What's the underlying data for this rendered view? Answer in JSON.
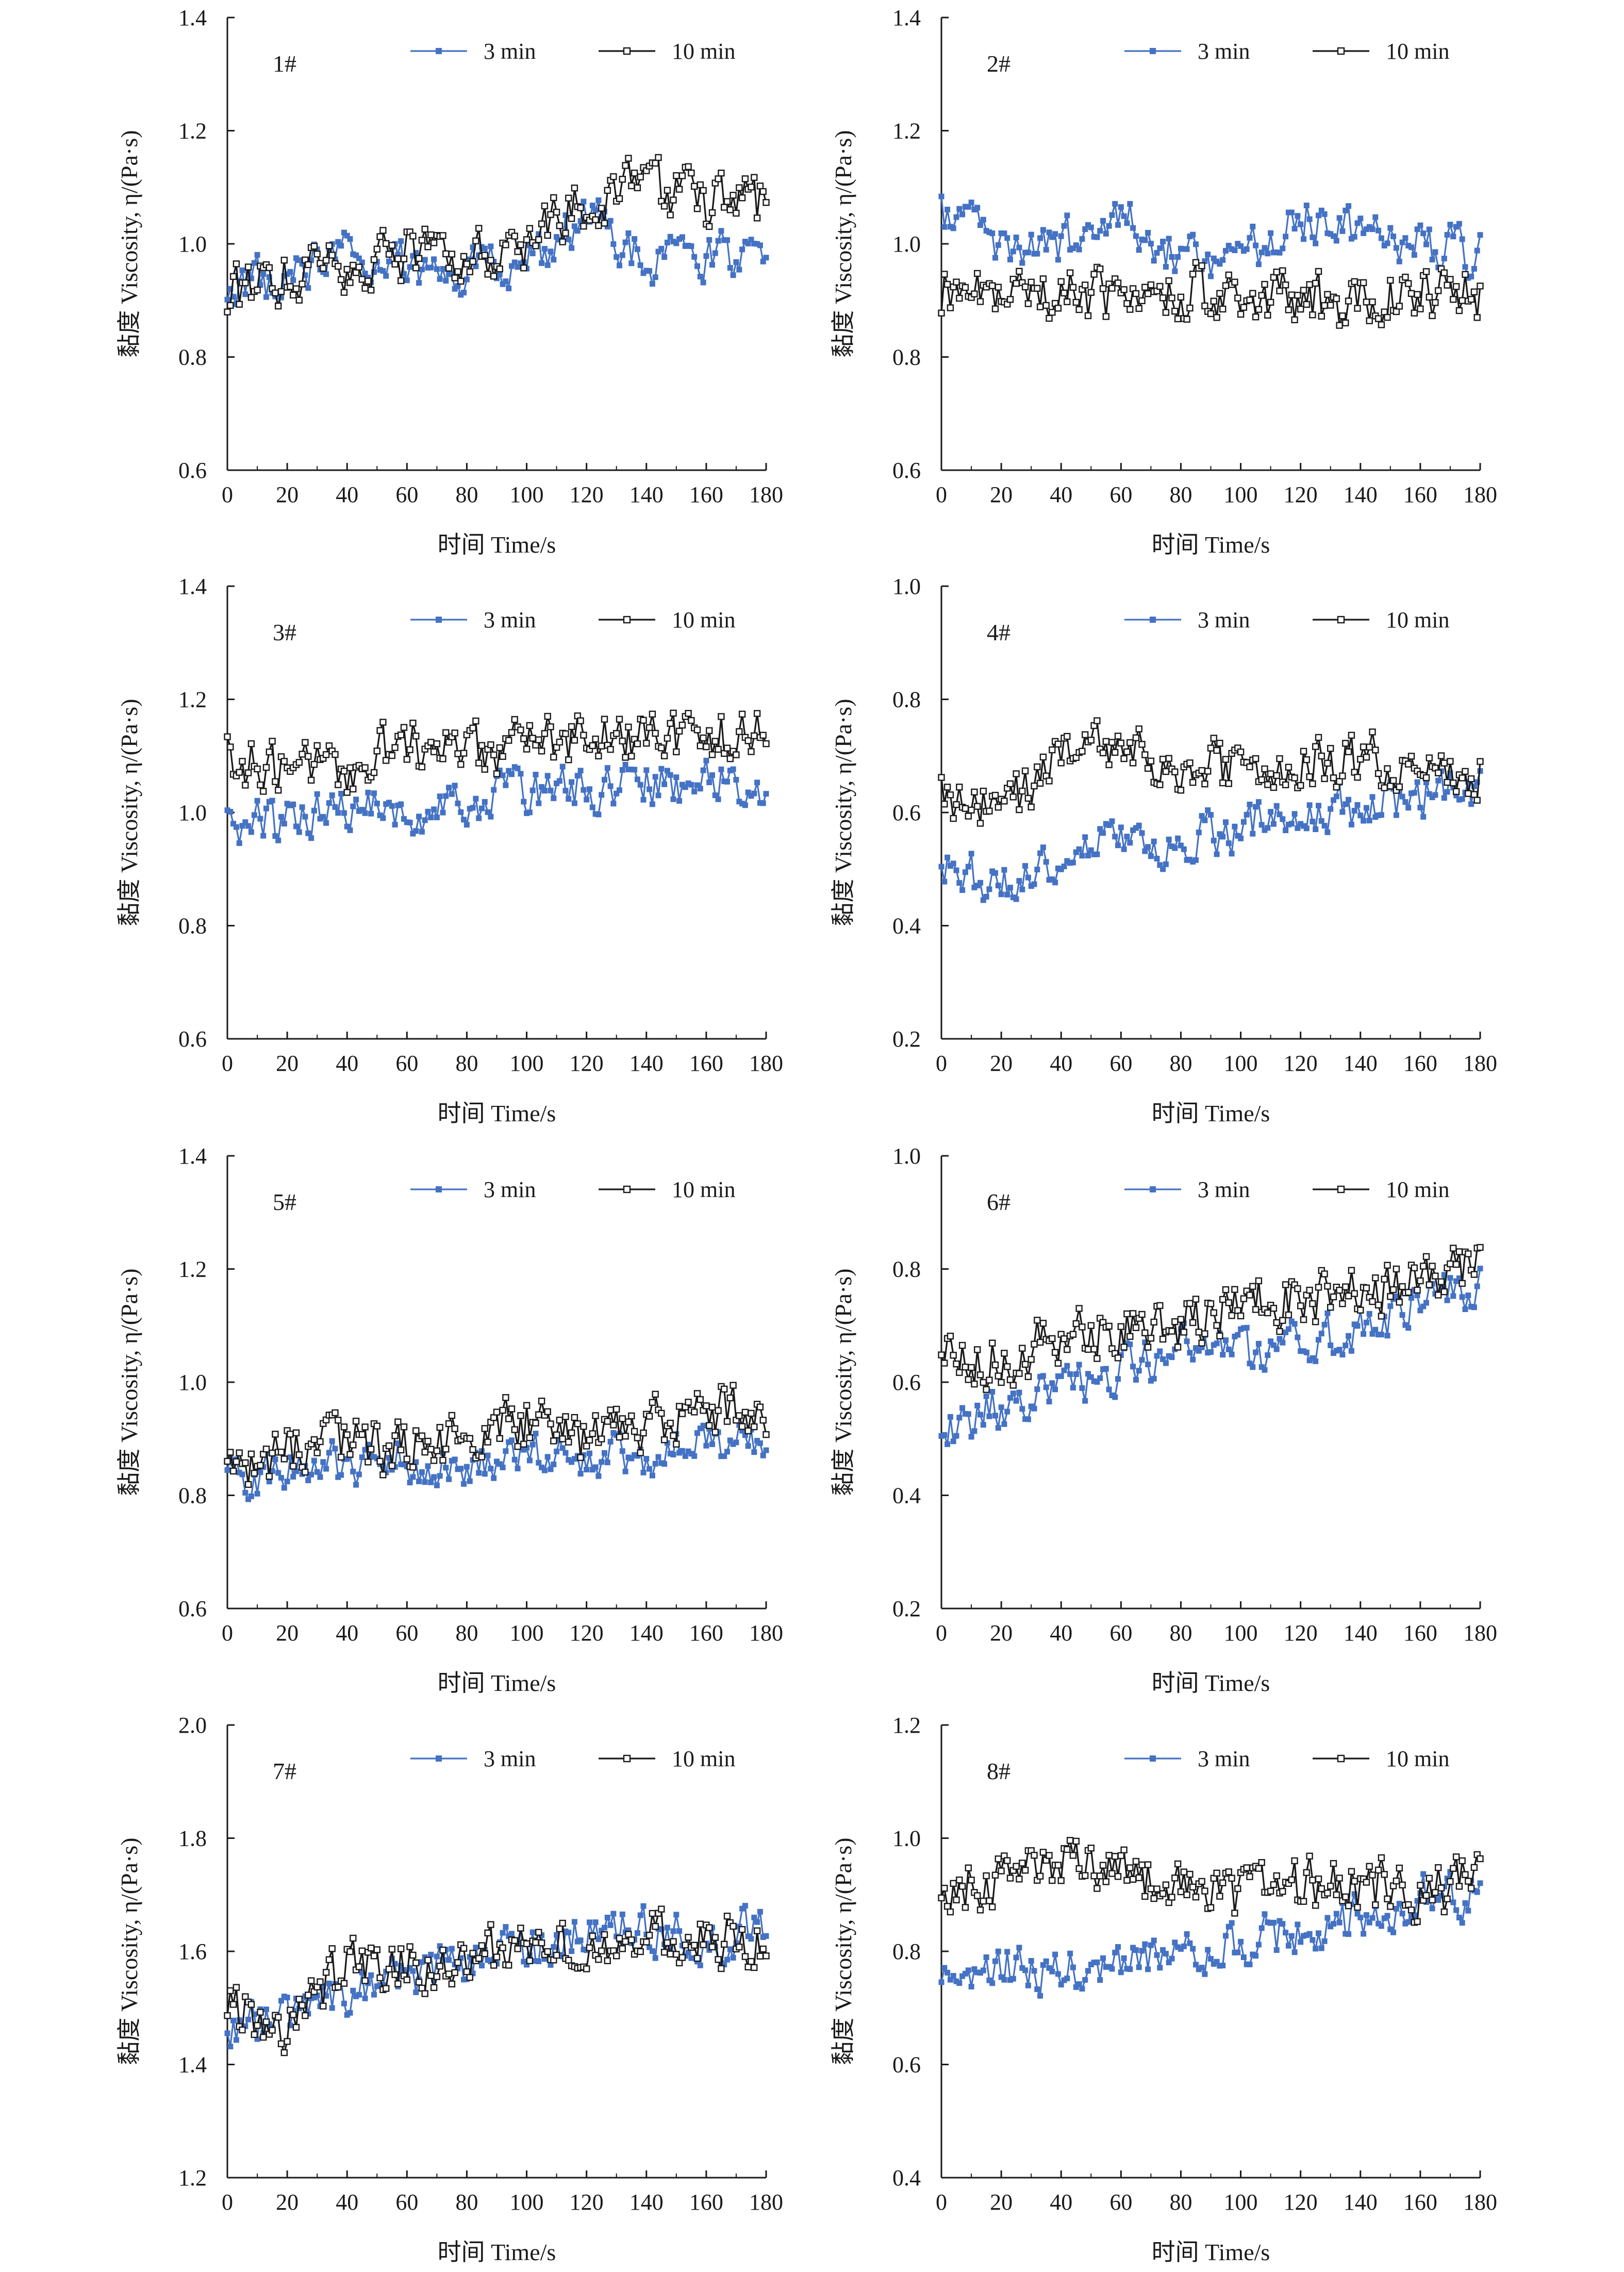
{
  "chart_data": [
    {
      "type": "line",
      "panel_label": "1#",
      "xlabel": "时间 Time/s",
      "ylabel": "黏度 Viscosity, η/(Pa·s)",
      "xlim": [
        0,
        180
      ],
      "ylim": [
        0.6,
        1.4
      ],
      "xticks": [
        0,
        20,
        40,
        60,
        80,
        100,
        120,
        140,
        160,
        180
      ],
      "yticks": [
        "0.6",
        "0.8",
        "1.0",
        "1.2",
        "1.4"
      ],
      "grid": false,
      "legend_position": "top-center",
      "series": [
        {
          "name": "3 min",
          "color": "#4472c4",
          "marker": "filled-square",
          "x": [
            0,
            20,
            40,
            60,
            80,
            100,
            120,
            140,
            160,
            180
          ],
          "y": [
            0.93,
            0.94,
            1.0,
            0.96,
            0.95,
            0.96,
            1.05,
            0.97,
            0.98,
            0.98
          ]
        },
        {
          "name": "10 min",
          "color": "#1a1a1a",
          "marker": "hollow-square",
          "x": [
            0,
            20,
            40,
            60,
            80,
            100,
            120,
            140,
            160,
            180
          ],
          "y": [
            0.91,
            0.95,
            0.97,
            0.98,
            0.98,
            1.0,
            1.08,
            1.1,
            1.07,
            1.07
          ]
        }
      ]
    },
    {
      "type": "line",
      "panel_label": "2#",
      "xlabel": "时间 Time/s",
      "ylabel": "黏度 Viscosity, η/(Pa·s)",
      "xlim": [
        0,
        180
      ],
      "ylim": [
        0.6,
        1.4
      ],
      "xticks": [
        0,
        20,
        40,
        60,
        80,
        100,
        120,
        140,
        160,
        180
      ],
      "yticks": [
        "0.6",
        "0.8",
        "1.0",
        "1.2",
        "1.4"
      ],
      "grid": false,
      "legend_position": "top-center",
      "series": [
        {
          "name": "3 min",
          "color": "#4472c4",
          "marker": "filled-square",
          "x": [
            0,
            20,
            40,
            60,
            80,
            100,
            120,
            140,
            160,
            180
          ],
          "y": [
            1.05,
            1.0,
            1.0,
            1.05,
            0.97,
            0.97,
            1.05,
            1.03,
            1.0,
            0.98
          ]
        },
        {
          "name": "10 min",
          "color": "#1a1a1a",
          "marker": "hollow-square",
          "x": [
            0,
            20,
            40,
            60,
            80,
            100,
            120,
            140,
            160,
            180
          ],
          "y": [
            0.92,
            0.91,
            0.92,
            0.9,
            0.91,
            0.92,
            0.9,
            0.89,
            0.92,
            0.9
          ]
        }
      ]
    },
    {
      "type": "line",
      "panel_label": "3#",
      "xlabel": "时间 Time/s",
      "ylabel": "黏度 Viscosity, η/(Pa·s)",
      "xlim": [
        0,
        180
      ],
      "ylim": [
        0.6,
        1.4
      ],
      "xticks": [
        0,
        20,
        40,
        60,
        80,
        100,
        120,
        140,
        160,
        180
      ],
      "yticks": [
        "0.6",
        "0.8",
        "1.0",
        "1.2",
        "1.4"
      ],
      "grid": false,
      "legend_position": "top-center",
      "series": [
        {
          "name": "3 min",
          "color": "#4472c4",
          "marker": "filled-square",
          "x": [
            0,
            20,
            40,
            60,
            80,
            100,
            120,
            140,
            160,
            180
          ],
          "y": [
            0.98,
            0.98,
            1.01,
            1.0,
            1.02,
            1.04,
            1.04,
            1.05,
            1.05,
            1.05
          ]
        },
        {
          "name": "10 min",
          "color": "#1a1a1a",
          "marker": "hollow-square",
          "x": [
            0,
            20,
            40,
            60,
            80,
            100,
            120,
            140,
            160,
            180
          ],
          "y": [
            1.1,
            1.07,
            1.08,
            1.12,
            1.1,
            1.12,
            1.13,
            1.13,
            1.14,
            1.13
          ]
        }
      ]
    },
    {
      "type": "line",
      "panel_label": "4#",
      "xlabel": "时间 Time/s",
      "ylabel": "黏度 Viscosity, η/(Pa·s)",
      "xlim": [
        0,
        180
      ],
      "ylim": [
        0.2,
        1.0
      ],
      "xticks": [
        0,
        20,
        40,
        60,
        80,
        100,
        120,
        140,
        160,
        180
      ],
      "yticks": [
        "0.2",
        "0.4",
        "0.6",
        "0.8",
        "1.0"
      ],
      "grid": false,
      "legend_position": "top-center",
      "series": [
        {
          "name": "3 min",
          "color": "#4472c4",
          "marker": "filled-square",
          "x": [
            0,
            20,
            40,
            60,
            80,
            100,
            120,
            140,
            160,
            180
          ],
          "y": [
            0.49,
            0.48,
            0.52,
            0.55,
            0.55,
            0.57,
            0.61,
            0.61,
            0.63,
            0.64
          ]
        },
        {
          "name": "10 min",
          "color": "#1a1a1a",
          "marker": "hollow-square",
          "x": [
            0,
            20,
            40,
            60,
            80,
            100,
            120,
            140,
            160,
            180
          ],
          "y": [
            0.64,
            0.6,
            0.7,
            0.7,
            0.68,
            0.68,
            0.68,
            0.7,
            0.68,
            0.68
          ]
        }
      ]
    },
    {
      "type": "line",
      "panel_label": "5#",
      "xlabel": "时间 Time/s",
      "ylabel": "黏度 Viscosity, η/(Pa·s)",
      "xlim": [
        0,
        180
      ],
      "ylim": [
        0.6,
        1.4
      ],
      "xticks": [
        0,
        20,
        40,
        60,
        80,
        100,
        120,
        140,
        160,
        180
      ],
      "yticks": [
        "0.6",
        "0.8",
        "1.0",
        "1.2",
        "1.4"
      ],
      "grid": false,
      "legend_position": "top-center",
      "series": [
        {
          "name": "3 min",
          "color": "#4472c4",
          "marker": "filled-square",
          "x": [
            0,
            20,
            40,
            60,
            80,
            100,
            120,
            140,
            160,
            180
          ],
          "y": [
            0.84,
            0.84,
            0.86,
            0.86,
            0.85,
            0.87,
            0.86,
            0.87,
            0.9,
            0.9
          ]
        },
        {
          "name": "10 min",
          "color": "#1a1a1a",
          "marker": "hollow-square",
          "x": [
            0,
            20,
            40,
            60,
            80,
            100,
            120,
            140,
            160,
            180
          ],
          "y": [
            0.85,
            0.88,
            0.9,
            0.88,
            0.9,
            0.93,
            0.9,
            0.91,
            0.96,
            0.92
          ]
        }
      ]
    },
    {
      "type": "line",
      "panel_label": "6#",
      "xlabel": "时间 Time/s",
      "ylabel": "黏度 Viscosity, η/(Pa·s)",
      "xlim": [
        0,
        180
      ],
      "ylim": [
        0.2,
        1.0
      ],
      "xticks": [
        0,
        20,
        40,
        60,
        80,
        100,
        120,
        140,
        160,
        180
      ],
      "yticks": [
        "0.2",
        "0.4",
        "0.6",
        "0.8",
        "1.0"
      ],
      "grid": false,
      "legend_position": "top-center",
      "series": [
        {
          "name": "3 min",
          "color": "#4472c4",
          "marker": "filled-square",
          "x": [
            0,
            20,
            40,
            60,
            80,
            100,
            120,
            140,
            160,
            180
          ],
          "y": [
            0.51,
            0.56,
            0.58,
            0.62,
            0.66,
            0.65,
            0.67,
            0.7,
            0.73,
            0.78
          ]
        },
        {
          "name": "10 min",
          "color": "#1a1a1a",
          "marker": "hollow-square",
          "x": [
            0,
            20,
            40,
            60,
            80,
            100,
            120,
            140,
            160,
            180
          ],
          "y": [
            0.65,
            0.64,
            0.68,
            0.7,
            0.7,
            0.74,
            0.75,
            0.77,
            0.77,
            0.8
          ]
        }
      ]
    },
    {
      "type": "line",
      "panel_label": "7#",
      "xlabel": "时间 Time/s",
      "ylabel": "黏度 Viscosity, η/(Pa·s)",
      "xlim": [
        0,
        180
      ],
      "ylim": [
        1.2,
        2.0
      ],
      "xticks": [
        0,
        20,
        40,
        60,
        80,
        100,
        120,
        140,
        160,
        180
      ],
      "yticks": [
        "1.2",
        "1.4",
        "1.6",
        "1.8",
        "2.0"
      ],
      "grid": false,
      "legend_position": "top-center",
      "series": [
        {
          "name": "3 min",
          "color": "#4472c4",
          "marker": "filled-square",
          "x": [
            0,
            20,
            40,
            60,
            80,
            100,
            120,
            140,
            160,
            180
          ],
          "y": [
            1.47,
            1.48,
            1.53,
            1.55,
            1.58,
            1.6,
            1.63,
            1.64,
            1.62,
            1.65
          ]
        },
        {
          "name": "10 min",
          "color": "#1a1a1a",
          "marker": "hollow-square",
          "x": [
            0,
            20,
            40,
            60,
            80,
            100,
            120,
            140,
            160,
            180
          ],
          "y": [
            1.5,
            1.47,
            1.57,
            1.58,
            1.6,
            1.6,
            1.6,
            1.62,
            1.63,
            1.62
          ]
        }
      ]
    },
    {
      "type": "line",
      "panel_label": "8#",
      "xlabel": "时间 Time/s",
      "ylabel": "黏度 Viscosity, η/(Pa·s)",
      "xlim": [
        0,
        180
      ],
      "ylim": [
        0.4,
        1.2
      ],
      "xticks": [
        0,
        20,
        40,
        60,
        80,
        100,
        120,
        140,
        160,
        180
      ],
      "yticks": [
        "0.4",
        "0.6",
        "0.8",
        "1.0",
        "1.2"
      ],
      "grid": false,
      "legend_position": "top-center",
      "series": [
        {
          "name": "3 min",
          "color": "#4472c4",
          "marker": "filled-square",
          "x": [
            0,
            20,
            40,
            60,
            80,
            100,
            120,
            140,
            160,
            180
          ],
          "y": [
            0.77,
            0.78,
            0.76,
            0.79,
            0.8,
            0.82,
            0.83,
            0.86,
            0.9,
            0.9
          ]
        },
        {
          "name": "10 min",
          "color": "#1a1a1a",
          "marker": "hollow-square",
          "x": [
            0,
            20,
            40,
            60,
            80,
            100,
            120,
            140,
            160,
            180
          ],
          "y": [
            0.92,
            0.92,
            0.95,
            0.95,
            0.9,
            0.9,
            0.92,
            0.92,
            0.9,
            0.93
          ]
        }
      ]
    }
  ]
}
